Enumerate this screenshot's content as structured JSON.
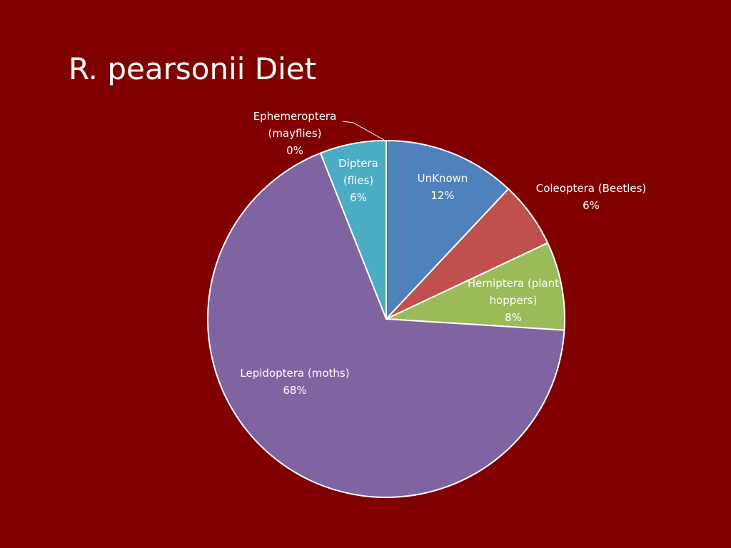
{
  "chart_data": {
    "type": "pie",
    "title": "R. pearsonii Diet",
    "categories": [
      "UnKnown",
      "Coleoptera (Beetles)",
      "Hemiptera (plant hoppers)",
      "Lepidoptera (moths)",
      "Diptera (flies)",
      "Ephemeroptera (mayflies)"
    ],
    "values": [
      12,
      6,
      8,
      68,
      6,
      0
    ],
    "value_labels": [
      "12%",
      "6%",
      "8%",
      "68%",
      "6%",
      "0%"
    ],
    "colors": [
      "#4f81bd",
      "#c0504d",
      "#9bbb59",
      "#8064a2",
      "#4bacc6",
      "#f79646"
    ]
  }
}
